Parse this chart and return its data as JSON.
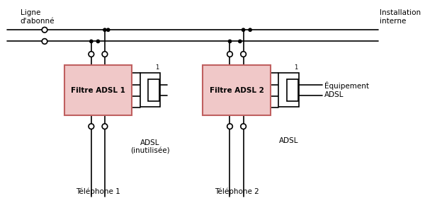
{
  "bg_color": "#ffffff",
  "line_color": "#000000",
  "filter_fill": "#f0c8c8",
  "filter_edge": "#c06060",
  "connector_fill": "#ffffff",
  "connector_edge": "#000000",
  "filter1_label": "Filtre ADSL 1",
  "filter2_label": "Filtre ADSL 2",
  "adsl1_label": "ADSL\n(inutilisée)",
  "adsl2_label": "ADSL",
  "tel1_label": "Téléphone 1",
  "tel2_label": "Téléphone 2",
  "ligne_label": "Ligne\nd'abonné",
  "install_label": "Installation\ninterne",
  "equip_label": "Équipement\nADSL",
  "figsize": [
    6.0,
    3.04
  ],
  "dpi": 100
}
